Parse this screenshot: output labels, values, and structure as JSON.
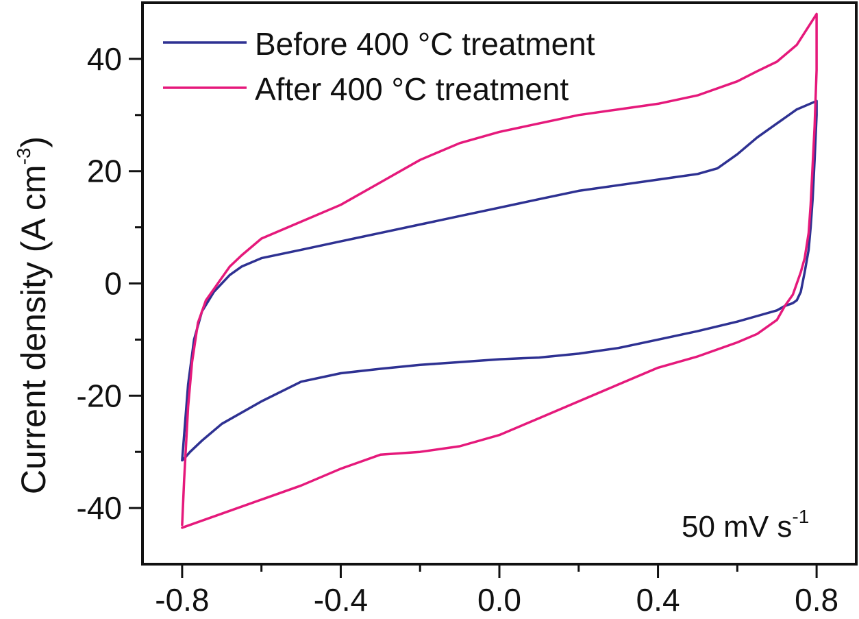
{
  "chart_data": {
    "type": "line",
    "ylabel": "Current density (A cm",
    "ylabel_unit_exp": "-3",
    "ylabel_close": ")",
    "xlim": [
      -0.9,
      0.9
    ],
    "ylim": [
      -50,
      50
    ],
    "x_ticks": [
      -0.8,
      -0.4,
      0.0,
      0.4,
      0.8
    ],
    "x_tick_labels": [
      "-0.8",
      "-0.4",
      "0.0",
      "0.4",
      "0.8"
    ],
    "x_minor_ticks": [
      -0.6,
      -0.2,
      0.2,
      0.6
    ],
    "y_ticks": [
      -40,
      -20,
      0,
      20,
      40
    ],
    "y_tick_labels": [
      "-40",
      "-20",
      "0",
      "20",
      "40"
    ],
    "y_minor_ticks": [
      -30,
      -10,
      10,
      30
    ],
    "grid": false,
    "legend_position": "top-left",
    "annotation": {
      "text": "50 mV s",
      "sup": "-1",
      "position": "bottom-right"
    },
    "series": [
      {
        "name": "Before 400 °C treatment",
        "color": "#2e3192",
        "x": [
          -0.8,
          -0.795,
          -0.785,
          -0.77,
          -0.75,
          -0.72,
          -0.7,
          -0.68,
          -0.65,
          -0.6,
          -0.5,
          -0.4,
          -0.3,
          -0.2,
          -0.1,
          0.0,
          0.1,
          0.2,
          0.3,
          0.4,
          0.5,
          0.55,
          0.6,
          0.65,
          0.7,
          0.75,
          0.8,
          0.8,
          0.795,
          0.79,
          0.785,
          0.78,
          0.77,
          0.76,
          0.75,
          0.74,
          0.72,
          0.7,
          0.65,
          0.6,
          0.5,
          0.4,
          0.3,
          0.2,
          0.1,
          0.0,
          -0.1,
          -0.2,
          -0.3,
          -0.4,
          -0.5,
          -0.6,
          -0.7,
          -0.75,
          -0.78,
          -0.79,
          -0.795,
          -0.8
        ],
        "y": [
          -31.5,
          -27,
          -18,
          -10,
          -5,
          -1.5,
          0,
          1.5,
          3,
          4.5,
          6,
          7.5,
          9,
          10.5,
          12,
          13.5,
          15,
          16.5,
          17.5,
          18.5,
          19.5,
          20.5,
          23,
          26,
          28.5,
          31,
          32.5,
          30,
          22,
          15,
          10,
          6,
          2,
          -1.5,
          -3,
          -3.5,
          -4,
          -4.8,
          -5.8,
          -6.8,
          -8.5,
          -10,
          -11.5,
          -12.5,
          -13.2,
          -13.5,
          -14,
          -14.5,
          -15.2,
          -16,
          -17.5,
          -21,
          -25,
          -28,
          -30,
          -30.8,
          -31.2,
          -31.5
        ]
      },
      {
        "name": "After 400 °C treatment",
        "color": "#e5197b",
        "x": [
          -0.8,
          -0.795,
          -0.785,
          -0.775,
          -0.76,
          -0.74,
          -0.72,
          -0.7,
          -0.68,
          -0.65,
          -0.6,
          -0.5,
          -0.4,
          -0.3,
          -0.2,
          -0.1,
          0.0,
          0.1,
          0.2,
          0.3,
          0.4,
          0.5,
          0.6,
          0.65,
          0.7,
          0.75,
          0.8,
          0.8,
          0.795,
          0.79,
          0.785,
          0.78,
          0.77,
          0.76,
          0.75,
          0.74,
          0.72,
          0.7,
          0.65,
          0.6,
          0.5,
          0.4,
          0.3,
          0.2,
          0.1,
          0.0,
          -0.1,
          -0.2,
          -0.3,
          -0.4,
          -0.5,
          -0.6,
          -0.7,
          -0.8
        ],
        "y": [
          -43,
          -35,
          -22,
          -14,
          -7,
          -3,
          -1,
          1,
          3,
          5,
          8,
          11,
          14,
          18,
          22,
          25,
          27,
          28.5,
          30,
          31,
          32,
          33.5,
          36,
          37.8,
          39.5,
          42.5,
          48,
          38,
          28,
          21,
          14,
          9,
          4.5,
          2,
          0,
          -2,
          -4,
          -6.5,
          -9,
          -10.5,
          -13,
          -15,
          -18,
          -21,
          -24,
          -27,
          -29,
          -30,
          -30.5,
          -33,
          -36,
          -38.5,
          -41,
          -43.5
        ]
      }
    ]
  }
}
